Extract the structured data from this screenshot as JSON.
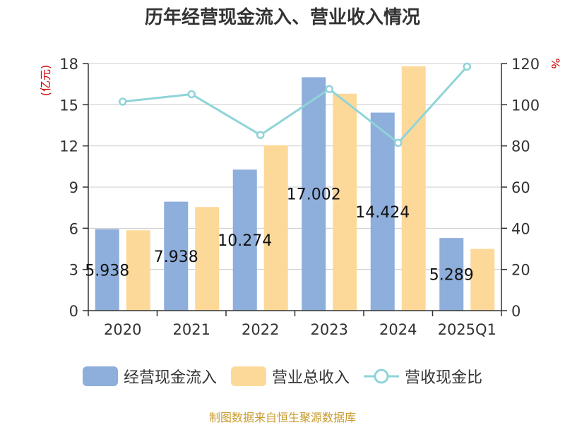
{
  "title": "历年经营现金流入、营业收入情况",
  "source_note": "制图数据来自恒生聚源数据库",
  "colors": {
    "cash_inflow": "#8eaedb",
    "revenue": "#fdd999",
    "ratio": "#8fd4d9",
    "axis_unit": "#cc0000",
    "source": "#c79b2e"
  },
  "legend": {
    "cash_inflow": "经营现金流入",
    "revenue": "营业总收入",
    "ratio": "营收现金比"
  },
  "chart_data": {
    "type": "bar",
    "categories": [
      "2020",
      "2021",
      "2022",
      "2023",
      "2024",
      "2025Q1"
    ],
    "series": [
      {
        "name": "经营现金流入",
        "type": "bar",
        "axis": "left",
        "values": [
          5.938,
          7.938,
          10.274,
          17.002,
          14.424,
          5.289
        ],
        "labels": [
          "5.938",
          "7.938",
          "10.274",
          "17.002",
          "14.424",
          "5.289"
        ]
      },
      {
        "name": "营业总收入",
        "type": "bar",
        "axis": "left",
        "values": [
          5.85,
          7.55,
          12.05,
          15.8,
          17.8,
          4.5
        ]
      },
      {
        "name": "营收现金比",
        "type": "line",
        "axis": "right",
        "values": [
          101.5,
          105.1,
          85.3,
          107.6,
          81.5,
          118.5
        ]
      }
    ],
    "y_left": {
      "unit": "(亿元)",
      "ylim": [
        0,
        18
      ],
      "ticks": [
        "0",
        "3",
        "6",
        "9",
        "12",
        "15",
        "18"
      ]
    },
    "y_right": {
      "unit": "%",
      "ylim": [
        0,
        120
      ],
      "ticks": [
        "0",
        "20",
        "40",
        "60",
        "80",
        "100",
        "120"
      ]
    },
    "grid": true,
    "legend_position": "bottom"
  }
}
